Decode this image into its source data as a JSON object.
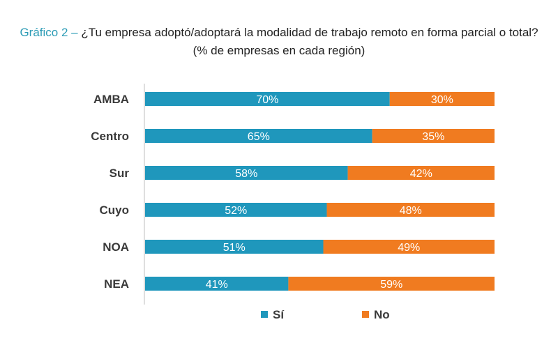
{
  "header": {
    "title_prefix": "Gráfico 2 –",
    "title": "¿Tu empresa adoptó/adoptará la modalidad de trabajo remoto en forma parcial o total?",
    "subtitle": "(% de empresas en cada región)"
  },
  "colors": {
    "si": "#1f97bc",
    "no": "#f07b20",
    "axis": "#bfbfbf",
    "label_text": "#3a3a3a",
    "value_text": "#ffffff"
  },
  "chart_data": {
    "type": "bar",
    "orientation": "horizontal",
    "stacked": true,
    "percent_stacked": true,
    "categories": [
      "AMBA",
      "Centro",
      "Sur",
      "Cuyo",
      "NOA",
      "NEA"
    ],
    "series": [
      {
        "name": "Sí",
        "values": [
          70,
          65,
          58,
          52,
          51,
          41
        ],
        "labels": [
          "70%",
          "65%",
          "58%",
          "52%",
          "51%",
          "41%"
        ]
      },
      {
        "name": "No",
        "values": [
          30,
          35,
          42,
          48,
          49,
          59
        ],
        "labels": [
          "30%",
          "35%",
          "42%",
          "48%",
          "49%",
          "59%"
        ]
      }
    ],
    "xlim": [
      0,
      100
    ],
    "grid": false,
    "legend_position": "bottom"
  }
}
